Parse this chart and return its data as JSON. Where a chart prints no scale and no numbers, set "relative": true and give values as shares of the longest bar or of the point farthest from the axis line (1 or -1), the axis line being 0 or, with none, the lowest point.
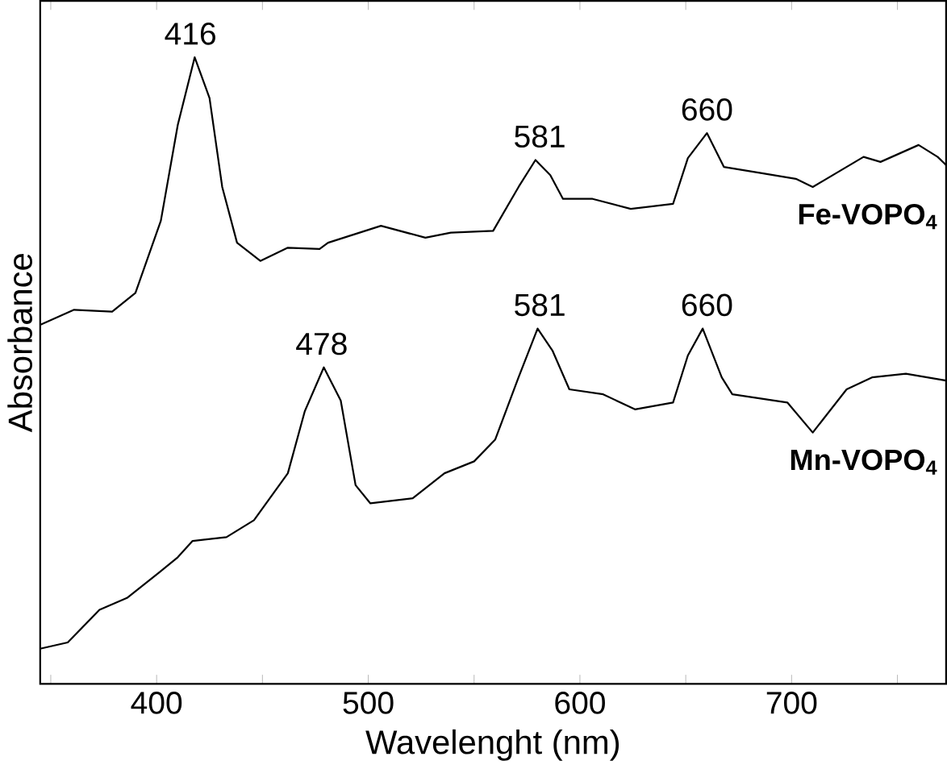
{
  "chart_data": {
    "type": "line",
    "relative": true,
    "xlabel": "Wavelenght (nm)",
    "ylabel": "Absorbance",
    "xlim": [
      345,
      773
    ],
    "xticks": [
      {
        "value": 350,
        "label": null
      },
      400,
      {
        "value": 450,
        "label": null
      },
      500,
      {
        "value": 550,
        "label": null
      },
      600,
      {
        "value": 650,
        "label": null
      },
      700,
      {
        "value": 750,
        "label": null
      }
    ],
    "series": [
      {
        "name": "Fe-VOPO$_{4}$",
        "color": "#000000",
        "x": [
          345,
          361,
          379,
          390,
          402,
          410,
          418,
          425,
          431,
          438,
          449,
          462,
          477,
          481,
          506,
          527,
          539,
          559,
          571,
          579,
          586,
          592,
          606,
          624,
          644,
          651,
          660,
          668,
          686,
          702,
          710,
          734,
          742,
          760,
          769,
          773
        ],
        "values": [
          0.573,
          0.597,
          0.594,
          0.624,
          0.739,
          0.892,
          1.0,
          0.935,
          0.793,
          0.704,
          0.675,
          0.696,
          0.694,
          0.704,
          0.731,
          0.712,
          0.72,
          0.723,
          0.793,
          0.836,
          0.812,
          0.774,
          0.774,
          0.758,
          0.766,
          0.839,
          0.879,
          0.825,
          0.815,
          0.806,
          0.793,
          0.841,
          0.833,
          0.86,
          0.841,
          0.828
        ]
      },
      {
        "name": "Mn-VOPO$_{4}$",
        "color": "#000000",
        "x": [
          345,
          358,
          373,
          386,
          401,
          410,
          417,
          433,
          446,
          462,
          470,
          479,
          487,
          494,
          501,
          521,
          536,
          550,
          560,
          571,
          580,
          587,
          595,
          611,
          626,
          644,
          651,
          658,
          667,
          672,
          698,
          710,
          726,
          738,
          754,
          773
        ],
        "values": [
          0.056,
          0.066,
          0.118,
          0.137,
          0.177,
          0.202,
          0.228,
          0.234,
          0.261,
          0.336,
          0.435,
          0.505,
          0.452,
          0.317,
          0.288,
          0.296,
          0.336,
          0.355,
          0.39,
          0.489,
          0.567,
          0.532,
          0.47,
          0.462,
          0.438,
          0.449,
          0.524,
          0.567,
          0.489,
          0.462,
          0.449,
          0.401,
          0.47,
          0.489,
          0.495,
          0.484
        ]
      }
    ],
    "annotations": [
      {
        "text": "416",
        "x": 416,
        "y": 1.0
      },
      {
        "text": "581",
        "x": 581,
        "y": 0.836
      },
      {
        "text": "660",
        "x": 660,
        "y": 0.879
      },
      {
        "text": "478",
        "x": 478,
        "y": 0.505
      },
      {
        "text": "581",
        "x": 581,
        "y": 0.567
      },
      {
        "text": "660",
        "x": 660,
        "y": 0.567
      }
    ]
  }
}
